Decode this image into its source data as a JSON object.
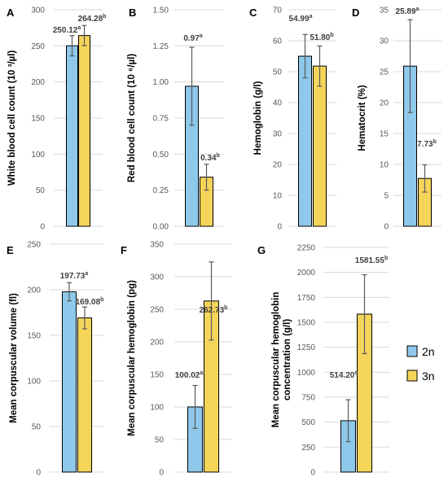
{
  "colors": {
    "2n": "#8ec8ea",
    "3n": "#f5d45a",
    "bar_stroke": "#000000",
    "grid": "#d9d9d9",
    "error_bar": "#595959"
  },
  "legend": {
    "items": [
      {
        "label": "2n",
        "color": "#8ec8ea"
      },
      {
        "label": "3n",
        "color": "#f5d45a"
      }
    ]
  },
  "chart_data": [
    {
      "panel": "A",
      "type": "bar",
      "ylabel": "White blood cell count (10 ³/µl)",
      "ylim": [
        0,
        300
      ],
      "yticks": [
        "0",
        "50",
        "100",
        "150",
        "200",
        "250",
        "300"
      ],
      "series": [
        {
          "name": "2n",
          "value": 250.12,
          "error": 14,
          "label": "250.12",
          "sup": "a"
        },
        {
          "name": "3n",
          "value": 264.28,
          "error": 14,
          "label": "264.28",
          "sup": "b"
        }
      ]
    },
    {
      "panel": "B",
      "type": "bar",
      "ylabel": "Red blood cell count (10 ⁶/µl)",
      "ylim": [
        0,
        1.5
      ],
      "yticks": [
        "0.00",
        "0.25",
        "0.50",
        "0.75",
        "1.00",
        "1.25",
        "1.50"
      ],
      "series": [
        {
          "name": "2n",
          "value": 0.97,
          "error": 0.27,
          "label": "0.97",
          "sup": "a"
        },
        {
          "name": "3n",
          "value": 0.34,
          "error": 0.09,
          "label": "0.34",
          "sup": "b"
        }
      ]
    },
    {
      "panel": "C",
      "type": "bar",
      "ylabel": "Hemoglobin (g/l)",
      "ylim": [
        0,
        70
      ],
      "yticks": [
        "0",
        "10",
        "20",
        "30",
        "40",
        "50",
        "60",
        "70"
      ],
      "series": [
        {
          "name": "2n",
          "value": 54.99,
          "error": 7,
          "label": "54.99",
          "sup": "a"
        },
        {
          "name": "3n",
          "value": 51.8,
          "error": 6.5,
          "label": "51.80",
          "sup": "b"
        }
      ]
    },
    {
      "panel": "D",
      "type": "bar",
      "ylabel": "Hematocrit (%)",
      "ylim": [
        0,
        35
      ],
      "yticks": [
        "0",
        "5",
        "10",
        "15",
        "20",
        "25",
        "30",
        "35"
      ],
      "series": [
        {
          "name": "2n",
          "value": 25.89,
          "error": 7.5,
          "label": "25.89",
          "sup": "a"
        },
        {
          "name": "3n",
          "value": 7.73,
          "error": 2.2,
          "label": "7.73",
          "sup": "b"
        }
      ]
    },
    {
      "panel": "E",
      "type": "bar",
      "ylabel": "Mean corpuscular volume (fl)",
      "ylim": [
        0,
        250
      ],
      "yticks": [
        "0",
        "50",
        "100",
        "150",
        "200",
        "250"
      ],
      "series": [
        {
          "name": "2n",
          "value": 197.73,
          "error": 10,
          "label": "197.73",
          "sup": "a"
        },
        {
          "name": "3n",
          "value": 169.08,
          "error": 12,
          "label": "169.08",
          "sup": "b"
        }
      ]
    },
    {
      "panel": "F",
      "type": "bar",
      "ylabel": "Mean corpuscular hemoglobin (pg)",
      "ylim": [
        0,
        350
      ],
      "yticks": [
        "0",
        "50",
        "100",
        "150",
        "200",
        "250",
        "300",
        "350"
      ],
      "series": [
        {
          "name": "2n",
          "value": 100.02,
          "error": 33,
          "label": "100.02",
          "sup": "a"
        },
        {
          "name": "3n",
          "value": 262.73,
          "error": 60,
          "label": "262.73",
          "sup": "b"
        }
      ]
    },
    {
      "panel": "G",
      "type": "bar",
      "ylabel": [
        "Mean corpuscular hemoglobin",
        "concentration (g/l)"
      ],
      "ylim": [
        0,
        2250
      ],
      "yticks": [
        "0",
        "250",
        "500",
        "750",
        "1000",
        "1250",
        "1500",
        "1750",
        "2000",
        "2250"
      ],
      "series": [
        {
          "name": "2n",
          "value": 514.2,
          "error": 210,
          "label": "514.20",
          "sup": "a"
        },
        {
          "name": "3n",
          "value": 1581.55,
          "error": 395,
          "label": "1581.55",
          "sup": "b"
        }
      ]
    }
  ]
}
